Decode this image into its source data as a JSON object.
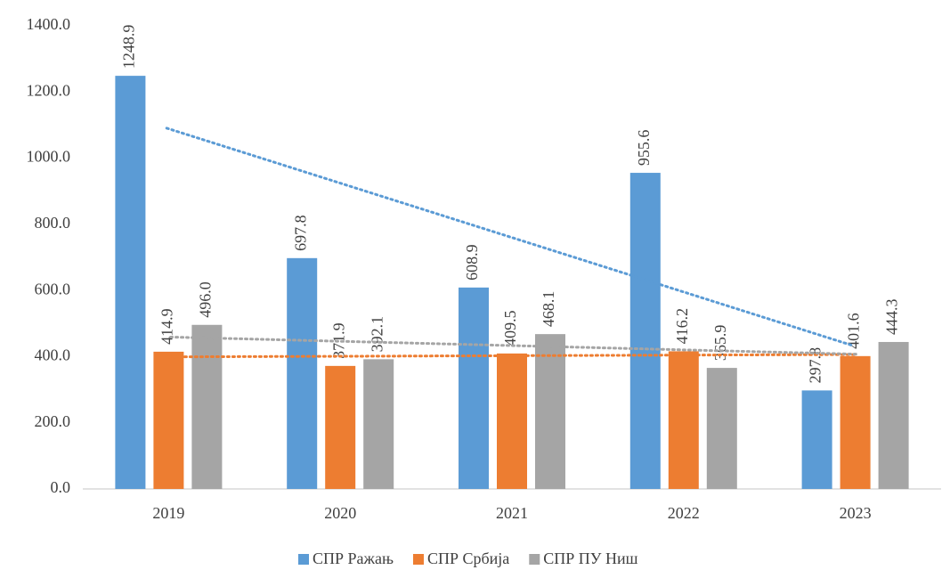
{
  "chart_data": {
    "type": "bar",
    "categories": [
      "2019",
      "2020",
      "2021",
      "2022",
      "2023"
    ],
    "series": [
      {
        "name": "СПР Ражањ",
        "color": "#5b9bd5",
        "values": [
          1248.9,
          697.8,
          608.9,
          955.6,
          297.8
        ],
        "value_labels": [
          "1248.9",
          "697.8",
          "608.9",
          "955.6",
          "297.8"
        ]
      },
      {
        "name": "СПР Србија",
        "color": "#ed7d31",
        "values": [
          414.9,
          371.9,
          409.5,
          416.2,
          401.6
        ],
        "value_labels": [
          "414.9",
          "371.9",
          "409.5",
          "416.2",
          "401.6"
        ]
      },
      {
        "name": "СПР ПУ Ниш",
        "color": "#a5a5a5",
        "values": [
          496,
          392.1,
          468.1,
          365.9,
          444.3
        ],
        "value_labels": [
          "496.0",
          "392.1",
          "468.1",
          "365.9",
          "444.3"
        ]
      }
    ],
    "trendline": "linear",
    "ylim": [
      0,
      1400
    ],
    "yticks": [
      {
        "value": 0,
        "label": "0.0"
      },
      {
        "value": 200,
        "label": "200.0"
      },
      {
        "value": 400,
        "label": "400.0"
      },
      {
        "value": 600,
        "label": "600.0"
      },
      {
        "value": 800,
        "label": "800.0"
      },
      {
        "value": 1000,
        "label": "1000.0"
      },
      {
        "value": 1200,
        "label": "1200.0"
      },
      {
        "value": 1400,
        "label": "1400.0"
      }
    ],
    "grid": false,
    "legend": "bottom"
  }
}
